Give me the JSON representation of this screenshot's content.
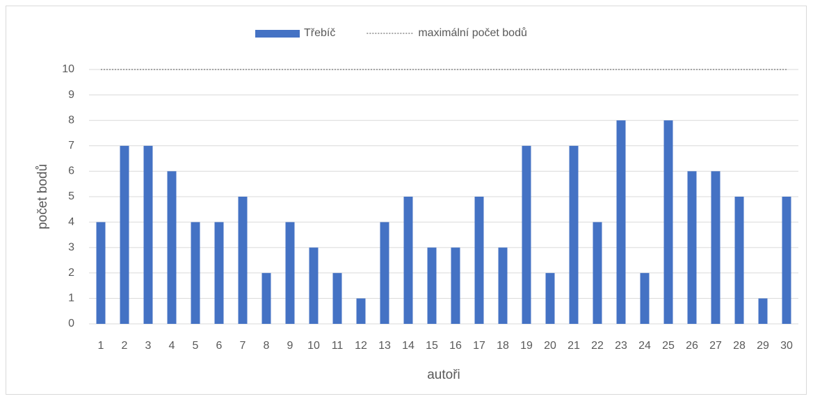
{
  "chart_data": {
    "type": "bar",
    "categories": [
      "1",
      "2",
      "3",
      "4",
      "5",
      "6",
      "7",
      "8",
      "9",
      "10",
      "11",
      "12",
      "13",
      "14",
      "15",
      "16",
      "17",
      "18",
      "19",
      "20",
      "21",
      "22",
      "23",
      "24",
      "25",
      "26",
      "27",
      "28",
      "29",
      "30"
    ],
    "series": [
      {
        "name": "Třebíč",
        "color": "#4472c4",
        "type": "bar",
        "values": [
          4,
          7,
          7,
          6,
          4,
          4,
          5,
          2,
          4,
          3,
          2,
          1,
          4,
          5,
          3,
          3,
          5,
          3,
          7,
          2,
          7,
          4,
          8,
          2,
          8,
          6,
          6,
          5,
          1,
          5
        ]
      },
      {
        "name": "maximální počet bodů",
        "color": "#a5a5a5",
        "type": "line",
        "values": [
          10,
          10,
          10,
          10,
          10,
          10,
          10,
          10,
          10,
          10,
          10,
          10,
          10,
          10,
          10,
          10,
          10,
          10,
          10,
          10,
          10,
          10,
          10,
          10,
          10,
          10,
          10,
          10,
          10,
          10
        ]
      }
    ],
    "ylabel": "počet bodů",
    "xlabel": "autoři",
    "ylim": [
      0,
      10
    ],
    "yticks": [
      0,
      1,
      2,
      3,
      4,
      5,
      6,
      7,
      8,
      9,
      10
    ],
    "grid": true,
    "legend": "top"
  }
}
